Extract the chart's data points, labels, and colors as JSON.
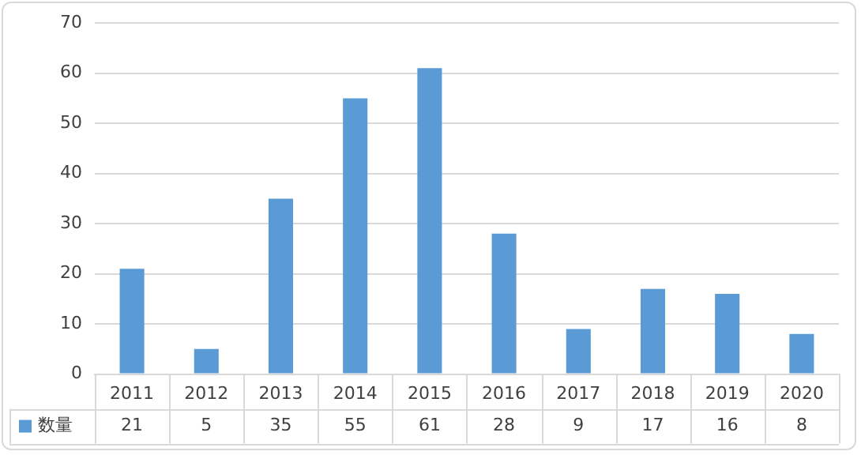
{
  "chart_data": {
    "type": "bar",
    "categories": [
      "2011",
      "2012",
      "2013",
      "2014",
      "2015",
      "2016",
      "2017",
      "2018",
      "2019",
      "2020"
    ],
    "series": [
      {
        "name": "数量",
        "color": "#5b9bd5",
        "values": [
          21,
          5,
          35,
          55,
          61,
          28,
          9,
          17,
          16,
          8
        ]
      }
    ],
    "ylim": [
      0,
      70
    ],
    "yticks": [
      0,
      10,
      20,
      30,
      40,
      50,
      60,
      70
    ],
    "grid": "y",
    "legend": "bottom",
    "data_labels": true
  }
}
